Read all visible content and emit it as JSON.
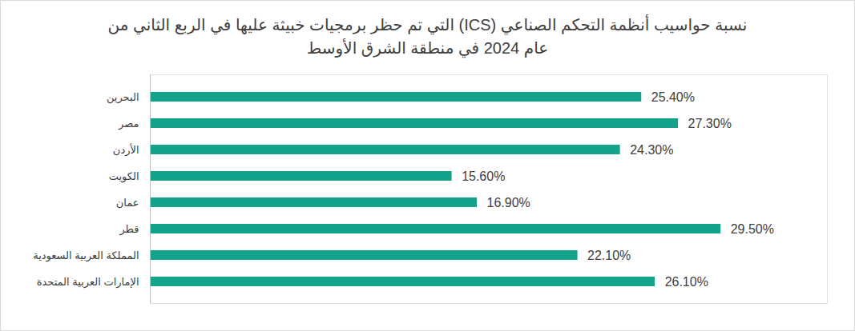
{
  "chart_data": {
    "type": "bar",
    "orientation": "horizontal",
    "title": "نسبة حواسيب أنظمة التحكم الصناعي (ICS) التي تم حظر برمجيات خبيثة عليها في الربع الثاني من\nعام 2024 في منطقة الشرق الأوسط",
    "categories": [
      "البحرين",
      "مصر",
      "الأردن",
      "الكويت",
      "عمان",
      "قطر",
      "المملكة العربية السعودية",
      "الإمارات العربية المتحدة"
    ],
    "values": [
      25.4,
      27.3,
      24.3,
      15.6,
      16.9,
      29.5,
      22.1,
      26.1
    ],
    "value_labels": [
      "25.40%",
      "27.30%",
      "24.30%",
      "15.60%",
      "16.90%",
      "29.50%",
      "22.10%",
      "26.10%"
    ],
    "color": "#12a38a",
    "xlim": [
      0,
      35
    ],
    "data_labels": true,
    "tick_labels": "y",
    "grid": false
  }
}
